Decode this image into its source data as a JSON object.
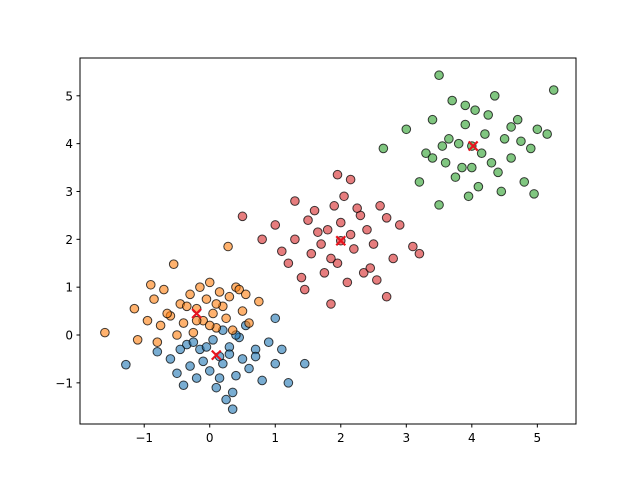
{
  "chart_data": {
    "type": "scatter",
    "xlim": [
      -1.98,
      5.59
    ],
    "ylim": [
      -1.86,
      5.79
    ],
    "xticks": [
      {
        "value": -1,
        "label": "−1"
      },
      0,
      1,
      2,
      3,
      4,
      5
    ],
    "yticks": [
      {
        "value": -1,
        "label": "−1"
      },
      0,
      1,
      2,
      3,
      4,
      5
    ],
    "grid": false,
    "series": [
      {
        "color": "#1f77b4",
        "marker": "o",
        "x": [
          -1.28,
          -0.8,
          -0.6,
          -0.5,
          -0.4,
          -0.35,
          -0.3,
          -0.2,
          -0.15,
          -0.1,
          0,
          0.05,
          0.1,
          0.15,
          0.2,
          0.25,
          0.3,
          0.35,
          0.4,
          0.45,
          0.5,
          0.6,
          0.7,
          0.8,
          0.9,
          1.0,
          1.1,
          1.2,
          1.45,
          0.35,
          0.2,
          -0.45,
          0.55,
          -0.05,
          0.3,
          1.0,
          0.7,
          -0.25,
          0.15,
          0.4
        ],
        "values": [
          -0.62,
          -0.35,
          -0.5,
          -0.8,
          -1.05,
          -0.2,
          -0.65,
          -0.9,
          -0.3,
          -0.55,
          -0.75,
          -0.1,
          -1.1,
          -0.45,
          -0.6,
          -1.35,
          -0.25,
          -1.55,
          -0.85,
          -0.05,
          -0.5,
          -0.7,
          -0.3,
          -0.95,
          -0.15,
          -0.6,
          -0.3,
          -1.0,
          -0.6,
          -1.2,
          0.1,
          -0.3,
          0.2,
          -0.25,
          -0.4,
          0.35,
          -0.45,
          -0.15,
          -0.9,
          0.0
        ]
      },
      {
        "color": "#ff7f0e",
        "marker": "o",
        "x": [
          -1.6,
          -1.15,
          -1.1,
          -0.95,
          -0.85,
          -0.75,
          -0.7,
          -0.6,
          -0.55,
          -0.5,
          -0.45,
          -0.4,
          -0.3,
          -0.25,
          -0.2,
          -0.15,
          -0.1,
          -0.05,
          0,
          0.05,
          0.1,
          0.15,
          0.2,
          0.25,
          0.3,
          0.35,
          0.4,
          0.5,
          0.6,
          0.75,
          0.28,
          -0.9,
          -0.65,
          0.0,
          -0.35,
          0.45,
          -0.8,
          0.1,
          -0.2,
          0.55
        ],
        "values": [
          0.05,
          0.55,
          -0.1,
          0.3,
          0.75,
          0.2,
          0.95,
          0.4,
          1.48,
          0.0,
          0.65,
          0.25,
          0.85,
          0.05,
          0.55,
          1.0,
          0.3,
          0.75,
          1.1,
          0.45,
          0.15,
          0.9,
          0.6,
          0.35,
          0.8,
          0.1,
          1.0,
          0.5,
          0.25,
          0.7,
          1.85,
          1.05,
          0.45,
          0.2,
          0.6,
          0.95,
          -0.15,
          0.65,
          0.3,
          0.85
        ]
      },
      {
        "color": "#d62728",
        "marker": "o",
        "x": [
          0.5,
          0.8,
          1.0,
          1.2,
          1.3,
          1.4,
          1.5,
          1.55,
          1.6,
          1.7,
          1.75,
          1.8,
          1.85,
          1.9,
          1.95,
          2.0,
          2.05,
          2.1,
          2.15,
          2.2,
          2.3,
          2.35,
          2.4,
          2.5,
          2.6,
          2.7,
          2.8,
          2.9,
          3.1,
          3.2,
          1.95,
          2.15,
          1.85,
          2.7,
          1.3,
          2.45,
          1.65,
          2.25,
          2.0,
          1.1,
          2.55,
          1.45
        ],
        "values": [
          2.48,
          2.0,
          2.3,
          1.5,
          2.8,
          1.2,
          2.4,
          1.7,
          2.6,
          1.9,
          1.3,
          2.2,
          0.65,
          2.7,
          1.5,
          1.97,
          2.9,
          1.1,
          3.25,
          1.8,
          2.5,
          1.3,
          2.2,
          1.9,
          2.7,
          0.8,
          1.6,
          2.3,
          1.85,
          1.7,
          3.35,
          2.1,
          1.6,
          2.45,
          2.0,
          1.4,
          2.15,
          2.65,
          2.35,
          1.75,
          1.15,
          0.95
        ]
      },
      {
        "color": "#2ca02c",
        "marker": "o",
        "x": [
          2.65,
          3.0,
          3.2,
          3.3,
          3.4,
          3.5,
          3.5,
          3.6,
          3.65,
          3.7,
          3.75,
          3.8,
          3.85,
          3.9,
          3.95,
          4.0,
          4.05,
          4.1,
          4.15,
          4.2,
          4.3,
          4.35,
          4.4,
          4.5,
          4.6,
          4.7,
          4.8,
          4.9,
          4.95,
          5.0,
          5.15,
          5.25,
          3.55,
          4.25,
          3.9,
          4.45,
          4.75,
          3.4,
          4.0,
          4.6
        ],
        "values": [
          3.9,
          4.3,
          3.2,
          3.8,
          4.5,
          5.43,
          2.72,
          3.6,
          4.1,
          4.9,
          3.3,
          4.0,
          3.5,
          4.4,
          2.9,
          3.95,
          4.7,
          3.1,
          3.8,
          4.2,
          3.6,
          5.0,
          3.4,
          4.1,
          3.7,
          4.5,
          3.2,
          3.9,
          2.95,
          4.3,
          4.2,
          5.12,
          3.95,
          4.6,
          4.8,
          3.0,
          4.05,
          3.7,
          3.5,
          4.35
        ]
      },
      {
        "color": "#e8141e",
        "marker": "x",
        "x": [
          0.1,
          -0.2,
          2.0,
          4.02
        ],
        "values": [
          -0.42,
          0.45,
          1.97,
          3.95
        ]
      }
    ]
  }
}
